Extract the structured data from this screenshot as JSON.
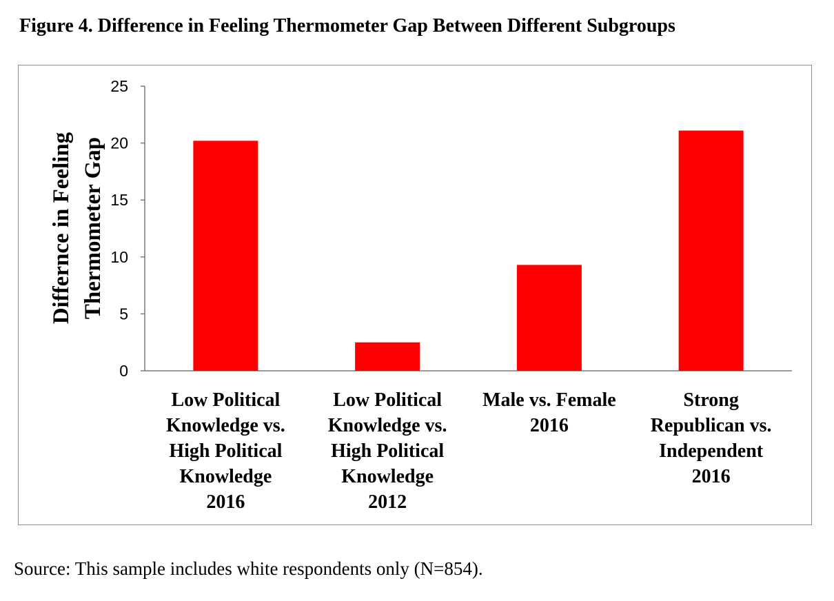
{
  "figure": {
    "title": "Figure 4. Difference in Feeling Thermometer Gap Between Different Subgroups",
    "source_note": "Source: This sample includes white respondents only (N=854)."
  },
  "chart_data": {
    "type": "bar",
    "title": "",
    "xlabel": "",
    "ylabel": "Differnce in Feeling Thermometer Gap",
    "ylabel_lines": [
      "Differnce in Feeling",
      "Thermometer Gap"
    ],
    "categories": [
      "Low Political Knowledge vs. High Political Knowledge 2016",
      "Low Political Knowledge vs. High Political Knowledge 2012",
      "Male vs. Female 2016",
      "Strong Republican vs. Independent 2016"
    ],
    "category_lines": [
      [
        "Low Political",
        "Knowledge vs.",
        "High Political",
        "Knowledge",
        "2016"
      ],
      [
        "Low Political",
        "Knowledge vs.",
        "High Political",
        "Knowledge",
        "2012"
      ],
      [
        "Male vs. Female",
        "2016"
      ],
      [
        "Strong",
        "Republican vs.",
        "Independent",
        "2016"
      ]
    ],
    "values": [
      20.2,
      2.5,
      9.3,
      21.1
    ],
    "ylim": [
      0,
      25
    ],
    "yticks": [
      0,
      5,
      10,
      15,
      20,
      25
    ],
    "grid": false,
    "legend": "none",
    "bar_color": "#ff0000"
  }
}
